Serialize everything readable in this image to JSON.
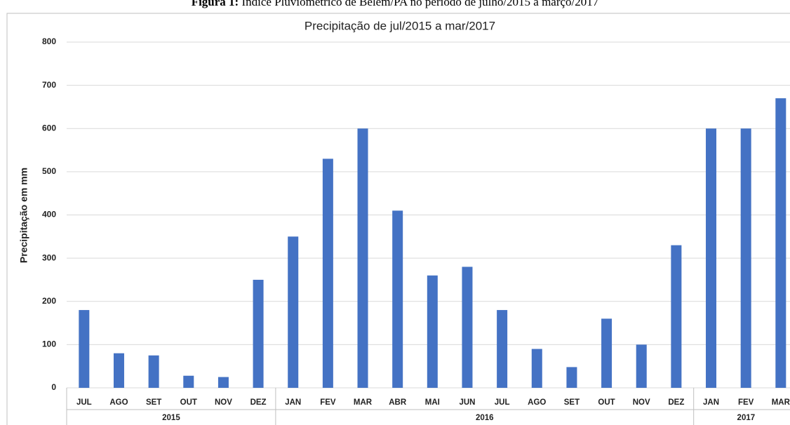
{
  "caption": {
    "label": "Figura 1:",
    "text": "Índice Pluviométrico de Belém/PA no período de julho/2015 a março/2017"
  },
  "chart_data": {
    "type": "bar",
    "title": "Precipitação de jul/2015  a mar/2017",
    "ylabel": "Precipitação em mm",
    "categories": [
      "JUL",
      "AGO",
      "SET",
      "OUT",
      "NOV",
      "DEZ",
      "JAN",
      "FEV",
      "MAR",
      "ABR",
      "MAI",
      "JUN",
      "JUL",
      "AGO",
      "SET",
      "OUT",
      "NOV",
      "DEZ",
      "JAN",
      "FEV",
      "MAR"
    ],
    "values": [
      180,
      80,
      75,
      28,
      25,
      250,
      350,
      530,
      600,
      410,
      260,
      280,
      180,
      90,
      48,
      160,
      100,
      330,
      600,
      600,
      670
    ],
    "groups": [
      {
        "name": "2015",
        "span": 6
      },
      {
        "name": "2016",
        "span": 12
      },
      {
        "name": "2017",
        "span": 3
      }
    ],
    "color": "#4472c4",
    "ylim": [
      0,
      800
    ],
    "yticks": [
      0,
      100,
      200,
      300,
      400,
      500,
      600,
      700,
      800
    ],
    "grid": true
  }
}
